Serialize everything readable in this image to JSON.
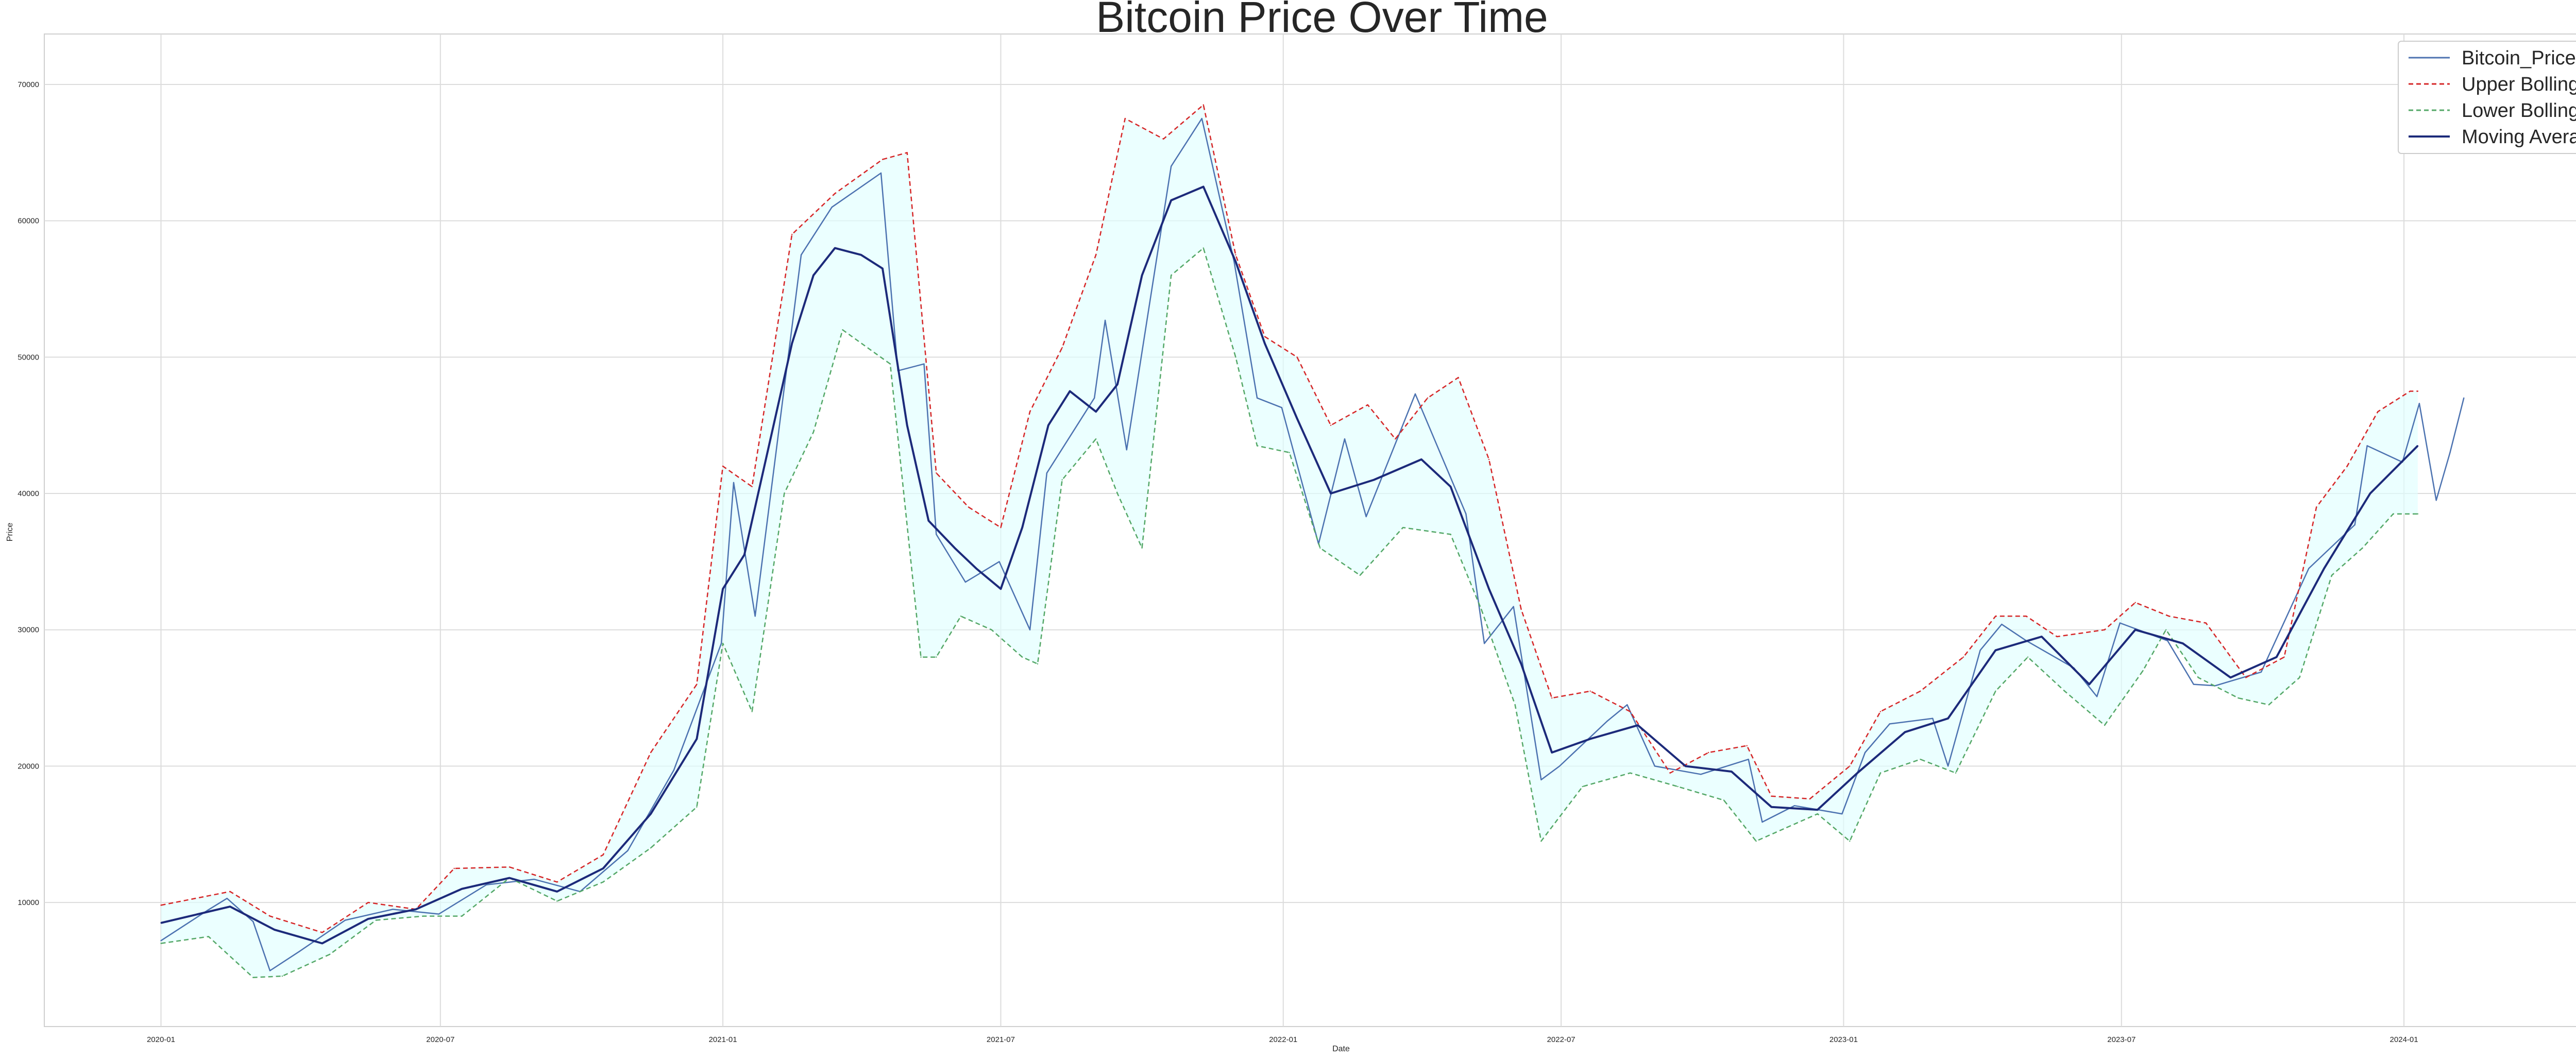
{
  "chart_data": {
    "type": "line",
    "title": "Bitcoin Price Over Time",
    "xlabel": "Date",
    "ylabel": "Price",
    "x_ticks": [
      "2020-01",
      "2020-07",
      "2021-01",
      "2021-07",
      "2022-01",
      "2022-07",
      "2023-01",
      "2023-07",
      "2024-01"
    ],
    "xlim": [
      "2019-10-17",
      "2024-06-02"
    ],
    "y_ticks": [
      10000,
      20000,
      30000,
      40000,
      50000,
      60000,
      70000
    ],
    "ylim": [
      900,
      73700
    ],
    "grid": true,
    "legend_position": "top-right",
    "band_fill_color": "#e0ffff",
    "series": [
      {
        "name": "Bitcoin_Price",
        "color": "#4c72b0",
        "style": "solid",
        "x": [
          "2020-01-01",
          "2020-01-31",
          "2020-02-13",
          "2020-03-01",
          "2020-03-12",
          "2020-03-31",
          "2020-04-30",
          "2020-05-31",
          "2020-06-30",
          "2020-07-31",
          "2020-08-31",
          "2020-09-30",
          "2020-10-31",
          "2020-11-30",
          "2020-12-31",
          "2021-01-08",
          "2021-01-22",
          "2021-02-21",
          "2021-03-13",
          "2021-04-14",
          "2021-04-25",
          "2021-05-12",
          "2021-05-20",
          "2021-06-08",
          "2021-06-30",
          "2021-07-20",
          "2021-07-31",
          "2021-08-31",
          "2021-09-07",
          "2021-09-21",
          "2021-10-20",
          "2021-11-09",
          "2021-11-30",
          "2021-12-15",
          "2021-12-31",
          "2022-01-24",
          "2022-02-10",
          "2022-02-24",
          "2022-03-28",
          "2022-04-30",
          "2022-05-12",
          "2022-05-31",
          "2022-06-18",
          "2022-06-30",
          "2022-07-31",
          "2022-08-13",
          "2022-08-31",
          "2022-09-30",
          "2022-10-31",
          "2022-11-09",
          "2022-11-30",
          "2022-12-31",
          "2023-01-15",
          "2023-01-31",
          "2023-02-28",
          "2023-03-10",
          "2023-03-31",
          "2023-04-14",
          "2023-04-30",
          "2023-05-31",
          "2023-06-15",
          "2023-06-30",
          "2023-07-31",
          "2023-08-17",
          "2023-08-31",
          "2023-09-30",
          "2023-10-31",
          "2023-11-30",
          "2023-12-08",
          "2023-12-31",
          "2024-01-11",
          "2024-01-22",
          "2024-01-31",
          "2024-02-09"
        ],
        "y": [
          7200,
          9400,
          10300,
          8600,
          5000,
          6400,
          8700,
          9500,
          9150,
          11300,
          11700,
          10800,
          13800,
          19700,
          29000,
          40800,
          31000,
          57500,
          61000,
          63500,
          49000,
          49500,
          37000,
          33500,
          35000,
          30000,
          41500,
          47000,
          52700,
          43200,
          64000,
          67500,
          57000,
          47000,
          46300,
          36300,
          44000,
          38300,
          47300,
          38500,
          29000,
          31700,
          19000,
          20000,
          23300,
          24500,
          20000,
          19400,
          20500,
          15900,
          17100,
          16500,
          21000,
          23100,
          23500,
          20000,
          28500,
          30400,
          29200,
          27200,
          25100,
          30500,
          29200,
          26000,
          25900,
          26900,
          34500,
          37700,
          43500,
          42300,
          46600,
          39500,
          43000,
          47000
        ]
      },
      {
        "name": "Upper Bollinger Band",
        "color": "#d62728",
        "style": "dashed",
        "x": [
          "2020-01-01",
          "2020-02-15",
          "2020-03-12",
          "2020-04-15",
          "2020-05-15",
          "2020-06-15",
          "2020-07-10",
          "2020-08-15",
          "2020-09-15",
          "2020-10-15",
          "2020-11-15",
          "2020-12-15",
          "2021-01-01",
          "2021-01-20",
          "2021-02-15",
          "2021-03-15",
          "2021-04-15",
          "2021-05-01",
          "2021-05-20",
          "2021-06-10",
          "2021-07-01",
          "2021-07-20",
          "2021-08-10",
          "2021-09-01",
          "2021-09-20",
          "2021-10-15",
          "2021-11-10",
          "2021-12-01",
          "2021-12-20",
          "2022-01-10",
          "2022-02-01",
          "2022-02-25",
          "2022-03-15",
          "2022-04-05",
          "2022-04-25",
          "2022-05-15",
          "2022-06-05",
          "2022-06-25",
          "2022-07-20",
          "2022-08-15",
          "2022-09-10",
          "2022-10-05",
          "2022-10-30",
          "2022-11-15",
          "2022-12-10",
          "2023-01-05",
          "2023-01-25",
          "2023-02-20",
          "2023-03-20",
          "2023-04-10",
          "2023-04-30",
          "2023-05-20",
          "2023-06-20",
          "2023-07-10",
          "2023-08-01",
          "2023-08-25",
          "2023-09-20",
          "2023-10-15",
          "2023-11-05",
          "2023-11-25",
          "2023-12-15",
          "2024-01-05",
          "2024-01-10"
        ],
        "y": [
          9800,
          10800,
          9000,
          7800,
          10000,
          9500,
          12500,
          12600,
          11500,
          13500,
          21000,
          26000,
          42000,
          40500,
          59000,
          62000,
          64500,
          65000,
          41500,
          39000,
          37500,
          46000,
          50700,
          57500,
          67500,
          66000,
          68500,
          57500,
          51500,
          50000,
          45000,
          46500,
          44000,
          47000,
          48500,
          42500,
          31500,
          25000,
          25500,
          24000,
          19500,
          21000,
          21500,
          17800,
          17600,
          20000,
          24000,
          25500,
          28000,
          31000,
          31000,
          29500,
          30000,
          32000,
          31000,
          30500,
          26500,
          28000,
          39000,
          42000,
          46000,
          47500,
          47500
        ]
      },
      {
        "name": "Lower Bollinger Band",
        "color": "#55a868",
        "style": "dashed",
        "x": [
          "2020-01-01",
          "2020-02-01",
          "2020-03-01",
          "2020-03-20",
          "2020-04-20",
          "2020-05-20",
          "2020-06-20",
          "2020-07-15",
          "2020-08-15",
          "2020-09-15",
          "2020-10-15",
          "2020-11-15",
          "2020-12-15",
          "2021-01-01",
          "2021-01-20",
          "2021-02-10",
          "2021-03-01",
          "2021-03-20",
          "2021-04-20",
          "2021-05-10",
          "2021-05-20",
          "2021-06-05",
          "2021-06-25",
          "2021-07-15",
          "2021-07-25",
          "2021-08-10",
          "2021-09-01",
          "2021-09-15",
          "2021-10-01",
          "2021-10-20",
          "2021-11-10",
          "2021-12-01",
          "2021-12-15",
          "2022-01-05",
          "2022-01-25",
          "2022-02-20",
          "2022-03-20",
          "2022-04-20",
          "2022-05-10",
          "2022-06-01",
          "2022-06-18",
          "2022-07-15",
          "2022-08-15",
          "2022-09-15",
          "2022-10-15",
          "2022-11-05",
          "2022-11-25",
          "2022-12-15",
          "2023-01-05",
          "2023-01-25",
          "2023-02-20",
          "2023-03-15",
          "2023-04-10",
          "2023-05-01",
          "2023-05-25",
          "2023-06-20",
          "2023-07-15",
          "2023-07-30",
          "2023-08-20",
          "2023-09-15",
          "2023-10-05",
          "2023-10-25",
          "2023-11-15",
          "2023-12-05",
          "2023-12-25",
          "2024-01-10"
        ],
        "y": [
          7000,
          7500,
          4500,
          4600,
          6200,
          8700,
          9000,
          9000,
          11800,
          10100,
          11500,
          14000,
          17000,
          29000,
          24000,
          40000,
          44500,
          52000,
          49500,
          28000,
          28000,
          31000,
          30000,
          28000,
          27500,
          41000,
          44000,
          40000,
          36000,
          56000,
          58000,
          50000,
          43500,
          43000,
          36000,
          34000,
          37500,
          37000,
          31500,
          24500,
          14500,
          18500,
          19500,
          18500,
          17500,
          14500,
          15500,
          16500,
          14500,
          19500,
          20500,
          19500,
          25500,
          28000,
          25500,
          23000,
          27000,
          30000,
          26500,
          25000,
          24500,
          26500,
          34000,
          36000,
          38500,
          38500
        ]
      },
      {
        "name": "Moving Average",
        "color": "#1c2a7a",
        "style": "solid",
        "x": [
          "2020-01-01",
          "2020-02-15",
          "2020-03-15",
          "2020-04-15",
          "2020-05-15",
          "2020-06-15",
          "2020-07-15",
          "2020-08-15",
          "2020-09-15",
          "2020-10-15",
          "2020-11-15",
          "2020-12-15",
          "2021-01-01",
          "2021-01-15",
          "2021-02-01",
          "2021-02-15",
          "2021-03-01",
          "2021-03-15",
          "2021-04-01",
          "2021-04-15",
          "2021-05-01",
          "2021-05-15",
          "2021-06-01",
          "2021-06-15",
          "2021-07-01",
          "2021-07-15",
          "2021-08-01",
          "2021-08-15",
          "2021-09-01",
          "2021-09-15",
          "2021-10-01",
          "2021-10-20",
          "2021-11-10",
          "2021-12-01",
          "2021-12-20",
          "2022-01-10",
          "2022-02-01",
          "2022-03-01",
          "2022-04-01",
          "2022-04-20",
          "2022-05-15",
          "2022-06-05",
          "2022-06-25",
          "2022-07-20",
          "2022-08-20",
          "2022-09-20",
          "2022-10-20",
          "2022-11-15",
          "2022-12-15",
          "2023-01-10",
          "2023-02-10",
          "2023-03-10",
          "2023-04-10",
          "2023-05-10",
          "2023-06-10",
          "2023-07-10",
          "2023-08-10",
          "2023-09-10",
          "2023-10-10",
          "2023-11-10",
          "2023-12-10",
          "2024-01-10"
        ],
        "y": [
          8500,
          9700,
          8000,
          7000,
          8800,
          9500,
          11000,
          11800,
          10800,
          12500,
          16500,
          22000,
          33000,
          35500,
          44000,
          51000,
          56000,
          58000,
          57500,
          56500,
          45000,
          38000,
          36000,
          34500,
          33000,
          37500,
          45000,
          47500,
          46000,
          48000,
          56000,
          61500,
          62500,
          57000,
          51000,
          45500,
          40000,
          41000,
          42500,
          40500,
          33000,
          27500,
          21000,
          22000,
          23000,
          20000,
          19600,
          17000,
          16800,
          19500,
          22500,
          23500,
          28500,
          29500,
          26000,
          30000,
          29000,
          26500,
          28000,
          34500,
          40000,
          43500
        ]
      }
    ]
  }
}
